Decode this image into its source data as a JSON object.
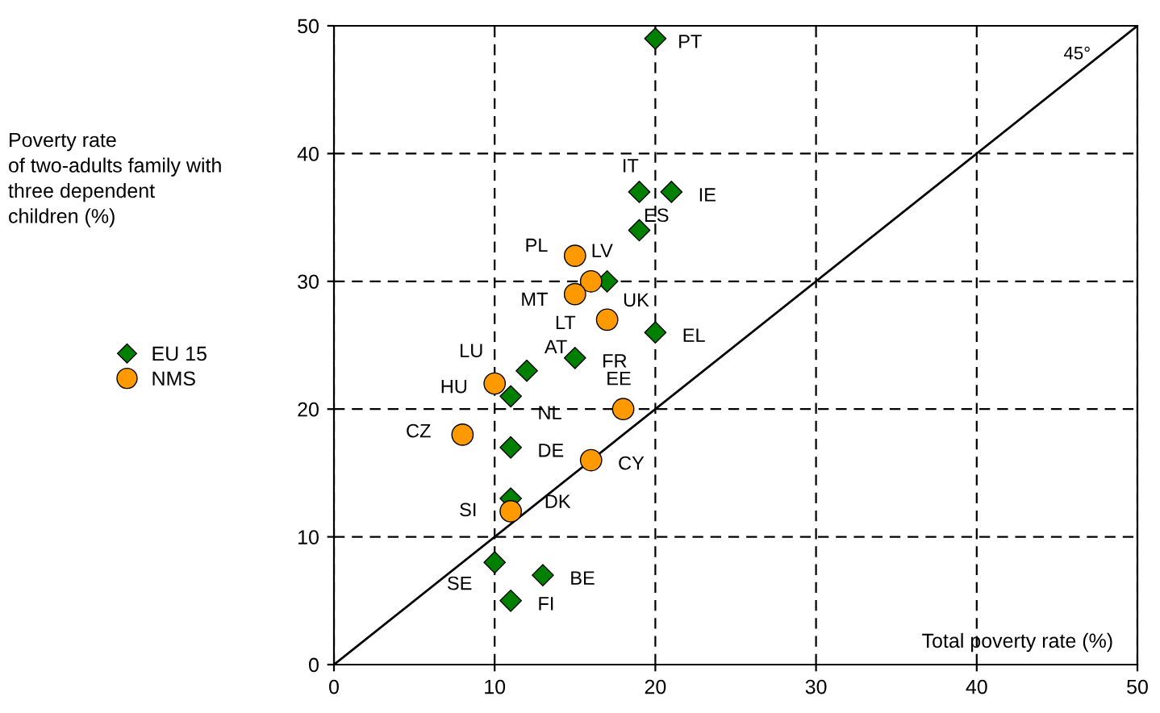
{
  "chart_data": {
    "type": "scatter",
    "xlabel": "Total poverty rate (%)",
    "ylabel": "Poverty rate\nof two-adults family with\nthree dependent\nchildren (%)",
    "xlim": [
      0,
      50
    ],
    "ylim": [
      0,
      50
    ],
    "xticks": [
      0,
      10,
      20,
      30,
      40,
      50
    ],
    "yticks": [
      0,
      10,
      20,
      30,
      40,
      50
    ],
    "grid": true,
    "legend": "left",
    "series": [
      {
        "name": "EU 15",
        "color": "#008000",
        "marker": "diamond",
        "x": [
          20,
          19,
          21,
          19,
          17,
          20,
          15,
          12,
          11,
          11,
          11,
          10,
          13,
          11
        ],
        "values": [
          49,
          37,
          37,
          34,
          30,
          26,
          24,
          23,
          21,
          17,
          13,
          8,
          7,
          5
        ]
      },
      {
        "name": "NMS",
        "color": "#ff9900",
        "marker": "circle",
        "x": [
          15,
          16,
          15,
          17,
          10,
          18,
          8,
          16,
          11
        ],
        "values": [
          32,
          30,
          29,
          27,
          22,
          20,
          18,
          16,
          12
        ]
      },
      {
        "type": "line",
        "color": "#000000",
        "marker": "none",
        "line_style": "solid",
        "x": [
          0,
          50
        ],
        "values": [
          0,
          50
        ]
      }
    ],
    "annotations": [
      {
        "text": "PT",
        "x": 20,
        "y": 49
      },
      {
        "text": "IT",
        "x": 19,
        "y": 37
      },
      {
        "text": "IE",
        "x": 21,
        "y": 37
      },
      {
        "text": "ES",
        "x": 19,
        "y": 34
      },
      {
        "text": "UK",
        "x": 17,
        "y": 30
      },
      {
        "text": "EL",
        "x": 20,
        "y": 26
      },
      {
        "text": "FR",
        "x": 15,
        "y": 24
      },
      {
        "text": "AT",
        "x": 12,
        "y": 23
      },
      {
        "text": "LU",
        "x": 10,
        "y": 22
      },
      {
        "text": "NL",
        "x": 11,
        "y": 21
      },
      {
        "text": "DE",
        "x": 11,
        "y": 17
      },
      {
        "text": "DK",
        "x": 11,
        "y": 13
      },
      {
        "text": "SE",
        "x": 10,
        "y": 8
      },
      {
        "text": "BE",
        "x": 13,
        "y": 7
      },
      {
        "text": "FI",
        "x": 11,
        "y": 5
      },
      {
        "text": "PL",
        "x": 15,
        "y": 32
      },
      {
        "text": "LV",
        "x": 16,
        "y": 30
      },
      {
        "text": "MT",
        "x": 15,
        "y": 29
      },
      {
        "text": "LT",
        "x": 17,
        "y": 27
      },
      {
        "text": "HU",
        "x": 10,
        "y": 22
      },
      {
        "text": "EE",
        "x": 18,
        "y": 20
      },
      {
        "text": "CZ",
        "x": 8,
        "y": 18
      },
      {
        "text": "CY",
        "x": 16,
        "y": 16
      },
      {
        "text": "SI",
        "x": 11,
        "y": 12
      },
      "45°"
    ]
  }
}
